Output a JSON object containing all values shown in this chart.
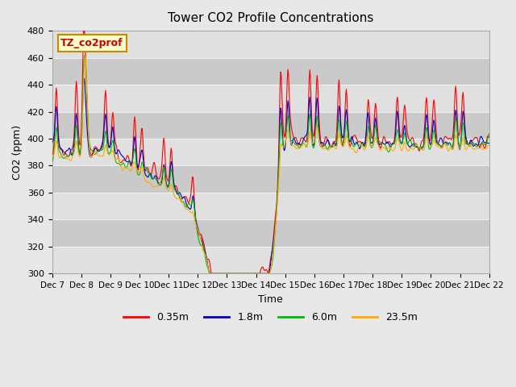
{
  "title": "Tower CO2 Profile Concentrations",
  "xlabel": "Time",
  "ylabel": "CO2 (ppm)",
  "ylim": [
    300,
    480
  ],
  "num_days": 15,
  "points_per_day": 48,
  "bg_color": "#e8e8e8",
  "plot_bg": "#d8d8d8",
  "series": [
    {
      "label": "0.35m",
      "color": "#ff0000"
    },
    {
      "label": "1.8m",
      "color": "#0000cc"
    },
    {
      "label": "6.0m",
      "color": "#00bb00"
    },
    {
      "label": "23.5m",
      "color": "#ffaa00"
    }
  ],
  "tick_labels": [
    "Dec 7",
    "Dec 8",
    "Dec 9",
    "Dec 10",
    "Dec 11",
    "Dec 12",
    "Dec 13",
    "Dec 14",
    "Dec 15",
    "Dec 16",
    "Dec 17",
    "Dec 18",
    "Dec 19",
    "Dec 20",
    "Dec 21",
    "Dec 22"
  ],
  "annotation_text": "TZ_co2prof",
  "annotation_color": "#cc0000",
  "annotation_bg": "#ffffcc",
  "annotation_border": "#cc8800"
}
